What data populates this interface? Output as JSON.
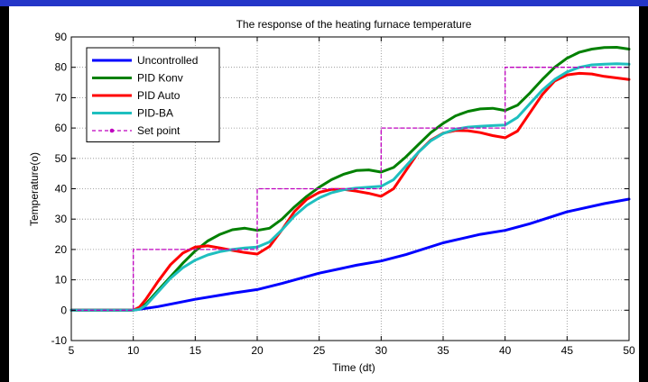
{
  "chart_data": {
    "type": "line",
    "title": "The response of the heating furnace temperature",
    "xlabel": "Time (dt)",
    "ylabel": "Temperature(o)",
    "xlim": [
      5,
      50
    ],
    "ylim": [
      -10,
      90
    ],
    "xticks": [
      5,
      10,
      15,
      20,
      25,
      30,
      35,
      40,
      45,
      50
    ],
    "yticks": [
      -10,
      0,
      10,
      20,
      30,
      40,
      50,
      60,
      70,
      80,
      90
    ],
    "grid": true,
    "legend_position": "top-left",
    "series": [
      {
        "name": "Uncontrolled",
        "color": "#0000ff",
        "style": "solid",
        "x": [
          5,
          10,
          12,
          15,
          18,
          20,
          22,
          25,
          28,
          30,
          32,
          35,
          38,
          40,
          42,
          45,
          48,
          50
        ],
        "y": [
          0,
          0,
          1.2,
          3.6,
          5.6,
          6.8,
          8.8,
          12.2,
          14.8,
          16.2,
          18.3,
          22.2,
          25,
          26.3,
          28.5,
          32.4,
          35.1,
          36.6
        ]
      },
      {
        "name": "PID Konv",
        "color": "#008000",
        "style": "solid",
        "x": [
          5,
          10,
          10.5,
          11,
          12,
          13,
          14,
          15,
          16,
          17,
          18,
          19,
          20,
          21,
          22,
          23,
          24,
          25,
          26,
          27,
          28,
          29,
          30,
          31,
          32,
          33,
          34,
          35,
          36,
          37,
          38,
          39,
          40,
          41,
          42,
          43,
          44,
          45,
          46,
          47,
          48,
          49,
          50
        ],
        "y": [
          0,
          0,
          0.5,
          2,
          6.5,
          11,
          15.5,
          19.5,
          22.8,
          25,
          26.5,
          27,
          26.3,
          27,
          30,
          34,
          37.5,
          40.5,
          43,
          44.8,
          46,
          46.2,
          45.5,
          47,
          50.5,
          54.5,
          58.5,
          61.5,
          64,
          65.5,
          66.3,
          66.5,
          65.8,
          67.5,
          71.5,
          76,
          80,
          83,
          85,
          86,
          86.5,
          86.6,
          86
        ]
      },
      {
        "name": "PID Auto",
        "color": "#ff0000",
        "style": "solid",
        "x": [
          5,
          10,
          10.5,
          11,
          12,
          13,
          14,
          15,
          16,
          17,
          18,
          19,
          20,
          21,
          22,
          23,
          24,
          25,
          26,
          27,
          28,
          29,
          30,
          31,
          32,
          33,
          34,
          35,
          36,
          37,
          38,
          39,
          40,
          41,
          42,
          43,
          44,
          45,
          46,
          47,
          48,
          49,
          50
        ],
        "y": [
          0,
          0,
          1,
          3.5,
          9.5,
          15,
          18.8,
          20.8,
          21.2,
          20.5,
          19.7,
          19,
          18.5,
          21,
          26.5,
          32.5,
          36.5,
          38.8,
          39.8,
          39.8,
          39.2,
          38.5,
          37.5,
          40,
          46,
          52,
          56,
          58.3,
          59.2,
          59.1,
          58.5,
          57.5,
          56.8,
          59,
          65,
          71,
          75.5,
          77.5,
          78,
          77.8,
          77,
          76.5,
          76
        ]
      },
      {
        "name": "PID-BA",
        "color": "#1fbfbf",
        "style": "solid",
        "x": [
          5,
          10,
          10.5,
          11,
          12,
          13,
          14,
          15,
          16,
          17,
          18,
          19,
          20,
          21,
          22,
          23,
          24,
          25,
          26,
          27,
          28,
          29,
          30,
          31,
          32,
          33,
          34,
          35,
          36,
          37,
          38,
          39,
          40,
          41,
          42,
          43,
          44,
          45,
          46,
          47,
          48,
          49,
          50
        ],
        "y": [
          0,
          0,
          0.3,
          1.5,
          6,
          10.5,
          14,
          16.5,
          18.2,
          19.3,
          20,
          20.5,
          20.8,
          22.5,
          26.5,
          31,
          34.5,
          37,
          38.7,
          39.7,
          40.2,
          40.5,
          40.8,
          43,
          47.5,
          52,
          55.8,
          58.2,
          59.6,
          60.3,
          60.6,
          60.8,
          61,
          63.5,
          68,
          72.5,
          76,
          78.5,
          80,
          80.8,
          81,
          81.2,
          81
        ]
      },
      {
        "name": "Set point",
        "color": "#bf00bf",
        "style": "dashed",
        "x": [
          5,
          10,
          10,
          20,
          20,
          30,
          30,
          40,
          40,
          50
        ],
        "y": [
          0,
          0,
          20,
          20,
          40,
          40,
          60,
          60,
          80,
          80
        ]
      }
    ]
  }
}
